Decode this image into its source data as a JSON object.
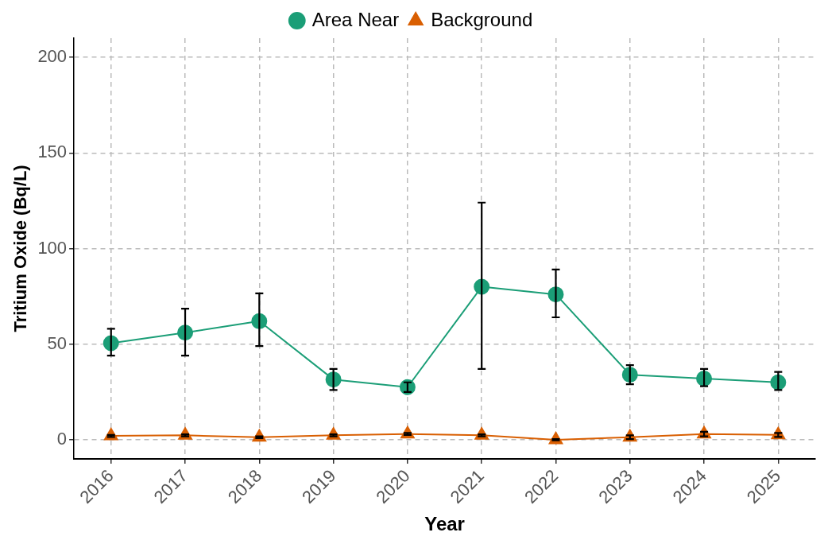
{
  "chart_data": {
    "type": "line",
    "xlabel": "Year",
    "ylabel": "Tritium Oxide (Bq/L)",
    "categories": [
      "2016",
      "2017",
      "2018",
      "2019",
      "2020",
      "2021",
      "2022",
      "2023",
      "2024",
      "2025"
    ],
    "series": [
      {
        "name": "Area Near",
        "color": "#1b9e77",
        "marker": "circle",
        "values": [
          50.5,
          56,
          62,
          31.5,
          27.5,
          80,
          76,
          34,
          32,
          30
        ],
        "errors": [
          [
            44,
            58
          ],
          [
            44,
            68.5
          ],
          [
            49,
            76.5
          ],
          [
            26,
            37
          ],
          [
            25,
            30
          ],
          [
            37,
            124
          ],
          [
            64,
            89
          ],
          [
            29,
            39
          ],
          [
            28,
            37
          ],
          [
            26,
            35.5
          ]
        ]
      },
      {
        "name": "Background",
        "color": "#d95f02",
        "marker": "triangle",
        "values": [
          2,
          2.3,
          1.3,
          2.3,
          3,
          2.3,
          0,
          1.3,
          3,
          2.5
        ],
        "errors": [
          [
            1.5,
            2.5
          ],
          [
            1.8,
            2.8
          ],
          [
            0.8,
            1.8
          ],
          [
            1.8,
            2.8
          ],
          [
            2.5,
            3.5
          ],
          [
            1.8,
            2.8
          ],
          [
            -0.3,
            0.3
          ],
          [
            0.3,
            2.3
          ],
          [
            1.8,
            4.2
          ],
          [
            1.5,
            3.5
          ]
        ]
      }
    ],
    "ylim": [
      -10,
      210
    ],
    "yticks": [
      0,
      50,
      100,
      150,
      200
    ],
    "grid": true,
    "legend": "top",
    "line_style": "solid"
  }
}
